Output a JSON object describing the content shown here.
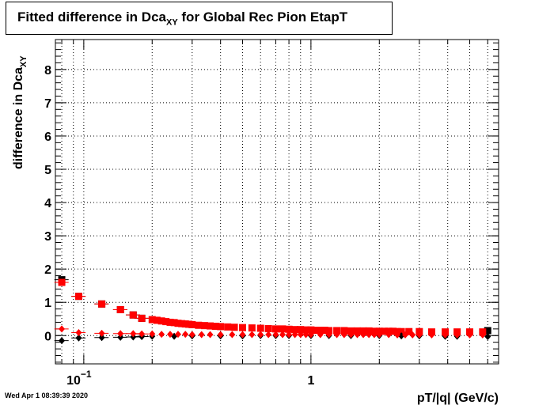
{
  "title": {
    "main": "Fitted difference in Dca",
    "sub": "XY",
    "rest": " for Global Rec Pion EtapT"
  },
  "footer": "Wed Apr  1 08:39:39 2020",
  "chart_data": {
    "type": "scatter",
    "title": "Fitted difference in Dca XY for Global Rec Pion EtapT",
    "xlabel": "pT/|q| (GeV/c)",
    "ylabel": "difference in Dca",
    "ylabel_sub": "XY",
    "xscale": "log",
    "xlim": [
      0.075,
      6.7
    ],
    "ylim": [
      -0.85,
      8.9
    ],
    "grid": true,
    "y_ticks": [
      "0",
      "1",
      "2",
      "3",
      "4",
      "5",
      "6",
      "7",
      "8"
    ],
    "x_ticks": [
      {
        "label": "10",
        "exp": "−1",
        "value": 0.1
      },
      {
        "label": "1",
        "exp": "",
        "value": 1
      }
    ],
    "colors": {
      "black": "#000000",
      "red": "#ff0000"
    },
    "series": [
      {
        "color": "#000000",
        "marker": "square",
        "x": [
          0.08,
          0.095,
          0.12,
          0.145,
          0.165,
          0.18,
          6.0
        ],
        "y": [
          1.68,
          1.18,
          0.95,
          0.78,
          0.62,
          0.52,
          0.15
        ]
      },
      {
        "color": "#ff0000",
        "marker": "square",
        "x": [
          0.08,
          0.095,
          0.12,
          0.145,
          0.165,
          0.18,
          0.2,
          0.21,
          0.22,
          0.23,
          0.24,
          0.25,
          0.26,
          0.27,
          0.28,
          0.29,
          0.3,
          0.32,
          0.34,
          0.36,
          0.38,
          0.4,
          0.43,
          0.46,
          0.5,
          0.55,
          0.6,
          0.65,
          0.7,
          0.75,
          0.8,
          0.85,
          0.9,
          0.95,
          1.0,
          1.05,
          1.1,
          1.15,
          1.2,
          1.3,
          1.4,
          1.5,
          1.6,
          1.7,
          1.8,
          1.9,
          2.0,
          2.1,
          2.2,
          2.3,
          2.4,
          2.5,
          2.7,
          3.0,
          3.4,
          3.9,
          4.4,
          5.0,
          5.7
        ],
        "y": [
          1.6,
          1.18,
          0.95,
          0.78,
          0.62,
          0.52,
          0.48,
          0.46,
          0.44,
          0.42,
          0.4,
          0.39,
          0.37,
          0.36,
          0.35,
          0.34,
          0.33,
          0.31,
          0.3,
          0.29,
          0.28,
          0.27,
          0.26,
          0.25,
          0.24,
          0.23,
          0.22,
          0.21,
          0.2,
          0.2,
          0.19,
          0.18,
          0.18,
          0.17,
          0.17,
          0.16,
          0.16,
          0.16,
          0.15,
          0.15,
          0.15,
          0.14,
          0.14,
          0.14,
          0.14,
          0.13,
          0.13,
          0.13,
          0.13,
          0.13,
          0.12,
          0.12,
          0.12,
          0.12,
          0.11,
          0.11,
          0.11,
          0.11,
          0.11
        ]
      },
      {
        "color": "#000000",
        "marker": "diamond",
        "x": [
          0.08,
          0.095,
          0.12,
          0.145,
          0.165,
          0.18,
          0.2,
          0.25,
          0.3,
          0.4,
          0.5,
          0.6,
          0.7,
          0.8,
          1.0,
          1.2,
          1.5,
          2.0,
          2.5,
          3.0,
          3.9,
          4.4,
          6.0
        ],
        "y": [
          -0.15,
          -0.07,
          -0.06,
          -0.05,
          -0.04,
          -0.03,
          -0.02,
          -0.02,
          -0.01,
          -0.01,
          -0.01,
          0.0,
          0.0,
          0.0,
          0.0,
          0.0,
          0.0,
          0.0,
          -0.01,
          -0.01,
          -0.02,
          -0.02,
          -0.03
        ]
      },
      {
        "color": "#ff0000",
        "marker": "diamond",
        "x": [
          0.08,
          0.095,
          0.12,
          0.145,
          0.165,
          0.18,
          0.2,
          0.22,
          0.24,
          0.26,
          0.28,
          0.3,
          0.33,
          0.36,
          0.4,
          0.45,
          0.5,
          0.55,
          0.6,
          0.65,
          0.7,
          0.75,
          0.8,
          0.85,
          0.9,
          0.95,
          1.0,
          1.1,
          1.2,
          1.3,
          1.4,
          1.5,
          1.6,
          1.7,
          1.8,
          1.9,
          2.0,
          2.2,
          2.4,
          2.6,
          2.8,
          3.0,
          3.4,
          3.9,
          4.4,
          5.0,
          5.7
        ],
        "y": [
          0.2,
          0.09,
          0.07,
          0.06,
          0.06,
          0.05,
          0.05,
          0.04,
          0.04,
          0.04,
          0.04,
          0.03,
          0.03,
          0.03,
          0.03,
          0.03,
          0.03,
          0.03,
          0.03,
          0.03,
          0.03,
          0.03,
          0.03,
          0.03,
          0.03,
          0.03,
          0.03,
          0.03,
          0.03,
          0.03,
          0.03,
          0.03,
          0.03,
          0.03,
          0.03,
          0.03,
          0.03,
          0.03,
          0.02,
          0.02,
          0.02,
          0.02,
          0.02,
          0.02,
          0.02,
          0.02,
          0.02
        ]
      }
    ]
  }
}
